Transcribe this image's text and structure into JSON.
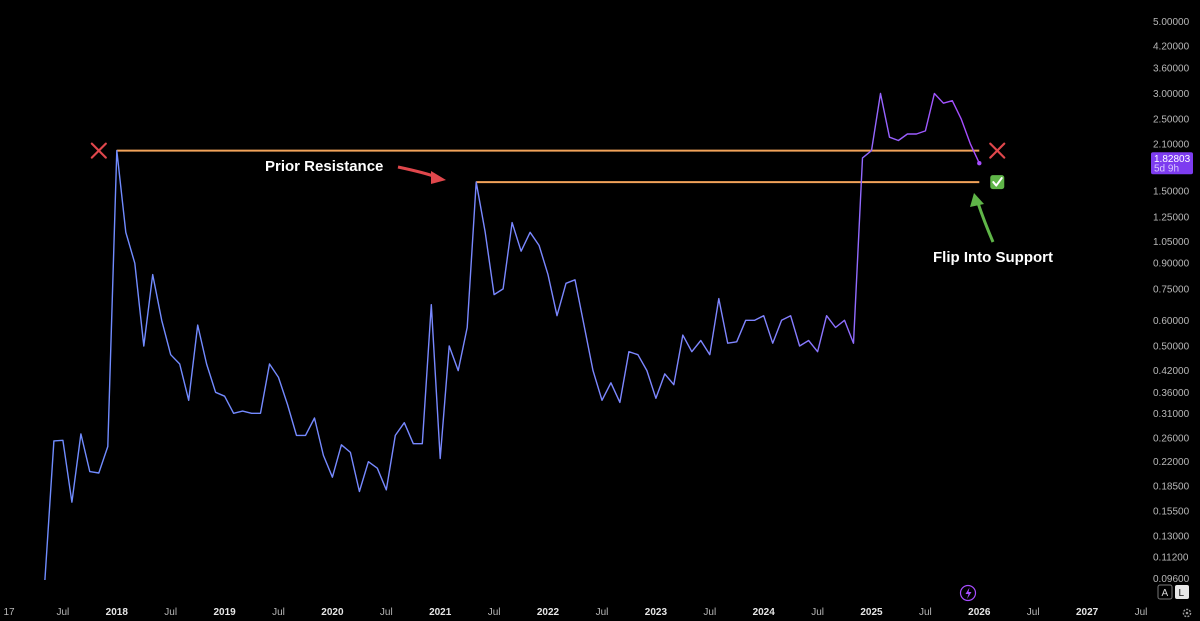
{
  "chart_data": {
    "type": "line",
    "y_scale": "log",
    "ylim": [
      0.095,
      5.2
    ],
    "y_ticks": [
      "5.00000",
      "4.20000",
      "3.60000",
      "3.00000",
      "2.50000",
      "2.10000",
      "1.50000",
      "1.25000",
      "1.05000",
      "0.90000",
      "0.75000",
      "0.60000",
      "0.50000",
      "0.42000",
      "0.36000",
      "0.31000",
      "0.26000",
      "0.22000",
      "0.18500",
      "0.15500",
      "0.13000",
      "0.11200",
      "0.09600"
    ],
    "x_ticks": [
      "17",
      "Jul",
      "2018",
      "Jul",
      "2019",
      "Jul",
      "2020",
      "Jul",
      "2021",
      "Jul",
      "2022",
      "Jul",
      "2023",
      "Jul",
      "2024",
      "Jul",
      "2025",
      "Jul",
      "2026",
      "Jul",
      "2027",
      "Jul"
    ],
    "x_tick_dates": [
      "2017-01",
      "2017-07",
      "2018-01",
      "2018-07",
      "2019-01",
      "2019-07",
      "2020-01",
      "2020-07",
      "2021-01",
      "2021-07",
      "2022-01",
      "2022-07",
      "2023-01",
      "2023-07",
      "2024-01",
      "2024-07",
      "2025-01",
      "2025-07",
      "2026-01",
      "2026-07",
      "2027-01",
      "2027-07"
    ],
    "x_range": [
      "2016-12",
      "2027-08"
    ],
    "series": [
      {
        "line_color_start": "#6f8cff",
        "line_color_end": "#a64dff",
        "points": [
          [
            "2017-05",
            0.095
          ],
          [
            "2017-06",
            0.255
          ],
          [
            "2017-07",
            0.256
          ],
          [
            "2017-08",
            0.165
          ],
          [
            "2017-09",
            0.268
          ],
          [
            "2017-10",
            0.205
          ],
          [
            "2017-11",
            0.203
          ],
          [
            "2017-12",
            0.245
          ],
          [
            "2018-01",
            2.0
          ],
          [
            "2018-02",
            1.12
          ],
          [
            "2018-03",
            0.9
          ],
          [
            "2018-04",
            0.5
          ],
          [
            "2018-05",
            0.83
          ],
          [
            "2018-06",
            0.6
          ],
          [
            "2018-07",
            0.47
          ],
          [
            "2018-08",
            0.44
          ],
          [
            "2018-09",
            0.34
          ],
          [
            "2018-10",
            0.58
          ],
          [
            "2018-11",
            0.44
          ],
          [
            "2018-12",
            0.36
          ],
          [
            "2019-01",
            0.35
          ],
          [
            "2019-02",
            0.31
          ],
          [
            "2019-03",
            0.315
          ],
          [
            "2019-04",
            0.31
          ],
          [
            "2019-05",
            0.31
          ],
          [
            "2019-06",
            0.44
          ],
          [
            "2019-07",
            0.4
          ],
          [
            "2019-08",
            0.33
          ],
          [
            "2019-09",
            0.265
          ],
          [
            "2019-10",
            0.265
          ],
          [
            "2019-11",
            0.3
          ],
          [
            "2019-12",
            0.23
          ],
          [
            "2020-01",
            0.197
          ],
          [
            "2020-02",
            0.248
          ],
          [
            "2020-03",
            0.235
          ],
          [
            "2020-04",
            0.178
          ],
          [
            "2020-05",
            0.22
          ],
          [
            "2020-06",
            0.21
          ],
          [
            "2020-07",
            0.18
          ],
          [
            "2020-08",
            0.265
          ],
          [
            "2020-09",
            0.29
          ],
          [
            "2020-10",
            0.25
          ],
          [
            "2020-11",
            0.25
          ],
          [
            "2020-12",
            0.67
          ],
          [
            "2021-01",
            0.225
          ],
          [
            "2021-02",
            0.5
          ],
          [
            "2021-03",
            0.42
          ],
          [
            "2021-04",
            0.57
          ],
          [
            "2021-05",
            1.6
          ],
          [
            "2021-06",
            1.12
          ],
          [
            "2021-07",
            0.72
          ],
          [
            "2021-08",
            0.75
          ],
          [
            "2021-09",
            1.2
          ],
          [
            "2021-10",
            0.98
          ],
          [
            "2021-11",
            1.12
          ],
          [
            "2021-12",
            1.02
          ],
          [
            "2022-01",
            0.83
          ],
          [
            "2022-02",
            0.62
          ],
          [
            "2022-03",
            0.78
          ],
          [
            "2022-04",
            0.8
          ],
          [
            "2022-05",
            0.58
          ],
          [
            "2022-06",
            0.42
          ],
          [
            "2022-07",
            0.34
          ],
          [
            "2022-08",
            0.385
          ],
          [
            "2022-09",
            0.335
          ],
          [
            "2022-10",
            0.48
          ],
          [
            "2022-11",
            0.47
          ],
          [
            "2022-12",
            0.42
          ],
          [
            "2023-01",
            0.345
          ],
          [
            "2023-02",
            0.41
          ],
          [
            "2023-03",
            0.38
          ],
          [
            "2023-04",
            0.54
          ],
          [
            "2023-05",
            0.48
          ],
          [
            "2023-06",
            0.52
          ],
          [
            "2023-07",
            0.47
          ],
          [
            "2023-08",
            0.7
          ],
          [
            "2023-09",
            0.51
          ],
          [
            "2023-10",
            0.515
          ],
          [
            "2023-11",
            0.6
          ],
          [
            "2023-12",
            0.6
          ],
          [
            "2024-01",
            0.62
          ],
          [
            "2024-02",
            0.51
          ],
          [
            "2024-03",
            0.6
          ],
          [
            "2024-04",
            0.62
          ],
          [
            "2024-05",
            0.5
          ],
          [
            "2024-06",
            0.52
          ],
          [
            "2024-07",
            0.48
          ],
          [
            "2024-08",
            0.62
          ],
          [
            "2024-09",
            0.57
          ],
          [
            "2024-10",
            0.6
          ],
          [
            "2024-11",
            0.51
          ],
          [
            "2024-12",
            1.9
          ],
          [
            "2025-01",
            2.0
          ],
          [
            "2025-02",
            3.0
          ],
          [
            "2025-03",
            2.2
          ],
          [
            "2025-04",
            2.15
          ],
          [
            "2025-05",
            2.25
          ],
          [
            "2025-06",
            2.25
          ],
          [
            "2025-07",
            2.3
          ],
          [
            "2025-08",
            3.0
          ],
          [
            "2025-09",
            2.8
          ],
          [
            "2025-10",
            2.85
          ],
          [
            "2025-11",
            2.5
          ],
          [
            "2025-12",
            2.1
          ],
          [
            "2026-01",
            1.83
          ]
        ]
      }
    ],
    "horizontal_lines": [
      {
        "y": 2.0,
        "from": "2018-01",
        "to": "2026-01",
        "color": "#f2a35a"
      },
      {
        "y": 1.6,
        "from": "2021-05",
        "to": "2026-01",
        "color": "#f2a35a"
      }
    ],
    "markers": [
      {
        "type": "cross",
        "x": "2017-11",
        "y": 2.0,
        "color": "#e0474c"
      },
      {
        "type": "cross",
        "x": "2026-03",
        "y": 2.0,
        "color": "#e0474c"
      },
      {
        "type": "check",
        "x": "2026-03",
        "y": 1.6,
        "color": "#5fb548"
      }
    ],
    "annotations": [
      {
        "text": "Prior Resistance",
        "arrow_color": "#e0474c"
      },
      {
        "text": "Flip Into Support",
        "arrow_color": "#5fb548"
      }
    ],
    "last_price": {
      "value": "1.82803",
      "countdown": "5d 9h",
      "color": "#7d3cf0"
    },
    "grid": false,
    "legend": "none"
  },
  "controls": {
    "auto_label": "A",
    "log_label": "L"
  },
  "icons": {
    "lightning": "lightning-icon",
    "gear": "gear-icon"
  }
}
